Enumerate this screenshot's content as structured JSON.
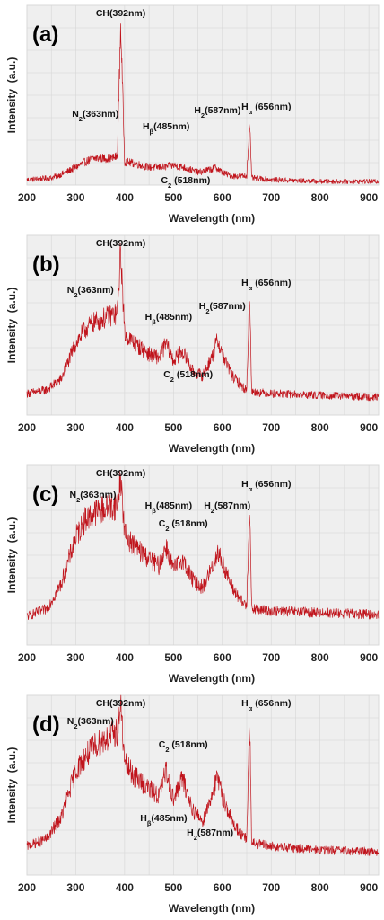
{
  "chart_data": [
    {
      "type": "line",
      "panel_label": "(a)",
      "xlabel": "Wavelength (nm)",
      "ylabel": "Intensity  (a.u.)",
      "xlim": [
        200,
        920
      ],
      "ylim": [
        0,
        1
      ],
      "x_ticks": [
        "200",
        "300",
        "400",
        "500",
        "600",
        "700",
        "800",
        "900"
      ],
      "grid": true,
      "line_color": "#c0141c",
      "series": [
        {
          "x": [
            200,
            250,
            280,
            300,
            320,
            340,
            360,
            375,
            385,
            392,
            400,
            420,
            450,
            480,
            500,
            520,
            550,
            580,
            587,
            600,
            620,
            650,
            656,
            660,
            700,
            800,
            920
          ],
          "y": [
            0.03,
            0.04,
            0.07,
            0.1,
            0.13,
            0.15,
            0.15,
            0.15,
            0.16,
            0.9,
            0.13,
            0.12,
            0.1,
            0.1,
            0.11,
            0.1,
            0.07,
            0.09,
            0.1,
            0.07,
            0.05,
            0.05,
            0.36,
            0.04,
            0.03,
            0.02,
            0.02
          ]
        }
      ],
      "annotations": [
        {
          "text": "CH(392nm)",
          "x": 392,
          "y": 0.96
        },
        {
          "text": "N2(363nm)",
          "x": 340,
          "y": 0.38
        },
        {
          "text": "Hβ(485nm)",
          "x": 485,
          "y": 0.31
        },
        {
          "text": "H2(587nm)",
          "x": 590,
          "y": 0.4
        },
        {
          "text": "Hα (656nm)",
          "x": 690,
          "y": 0.42
        },
        {
          "text": "C2 (518nm)",
          "x": 525,
          "y": 0.0
        }
      ]
    },
    {
      "type": "line",
      "panel_label": "(b)",
      "xlabel": "Wavelength (nm)",
      "ylabel": "Intensity  (a.u.)",
      "xlim": [
        200,
        920
      ],
      "ylim": [
        0,
        1
      ],
      "x_ticks": [
        "200",
        "300",
        "400",
        "500",
        "600",
        "700",
        "800",
        "900"
      ],
      "grid": true,
      "line_color": "#c0141c",
      "series": [
        {
          "x": [
            200,
            240,
            270,
            300,
            320,
            340,
            360,
            375,
            385,
            392,
            400,
            420,
            450,
            470,
            485,
            500,
            518,
            540,
            560,
            580,
            590,
            600,
            620,
            640,
            650,
            656,
            660,
            700,
            800,
            920
          ],
          "y": [
            0.12,
            0.14,
            0.2,
            0.4,
            0.48,
            0.52,
            0.54,
            0.56,
            0.56,
            0.92,
            0.45,
            0.4,
            0.34,
            0.32,
            0.4,
            0.3,
            0.36,
            0.24,
            0.22,
            0.33,
            0.42,
            0.34,
            0.22,
            0.16,
            0.14,
            0.7,
            0.13,
            0.12,
            0.11,
            0.1
          ]
        }
      ],
      "annotations": [
        {
          "text": "CH(392nm)",
          "x": 392,
          "y": 0.98
        },
        {
          "text": "N2(363nm)",
          "x": 330,
          "y": 0.68
        },
        {
          "text": "Hβ(485nm)",
          "x": 490,
          "y": 0.53
        },
        {
          "text": "H2(587nm)",
          "x": 600,
          "y": 0.59
        },
        {
          "text": "Hα (656nm)",
          "x": 690,
          "y": 0.72
        },
        {
          "text": "C2 (518nm)",
          "x": 530,
          "y": 0.21
        }
      ]
    },
    {
      "type": "line",
      "panel_label": "(c)",
      "xlabel": "Wavelength (nm)",
      "ylabel": "Intensity  (a.u.)",
      "xlim": [
        200,
        920
      ],
      "ylim": [
        0,
        1
      ],
      "x_ticks": [
        "200",
        "300",
        "400",
        "500",
        "600",
        "700",
        "800",
        "900"
      ],
      "grid": true,
      "line_color": "#c0141c",
      "series": [
        {
          "x": [
            200,
            240,
            270,
            300,
            320,
            340,
            360,
            375,
            385,
            392,
            400,
            420,
            450,
            470,
            485,
            500,
            518,
            540,
            560,
            580,
            590,
            600,
            620,
            640,
            650,
            656,
            660,
            700,
            800,
            920
          ],
          "y": [
            0.16,
            0.2,
            0.34,
            0.6,
            0.7,
            0.74,
            0.76,
            0.77,
            0.78,
            0.94,
            0.62,
            0.55,
            0.48,
            0.44,
            0.55,
            0.42,
            0.48,
            0.36,
            0.32,
            0.44,
            0.52,
            0.46,
            0.32,
            0.24,
            0.22,
            0.8,
            0.2,
            0.19,
            0.18,
            0.17
          ]
        }
      ],
      "annotations": [
        {
          "text": "CH(392nm)",
          "x": 392,
          "y": 0.99
        },
        {
          "text": "N2(363nm)",
          "x": 335,
          "y": 0.82
        },
        {
          "text": "Hβ(485nm)",
          "x": 490,
          "y": 0.76
        },
        {
          "text": "H2(587nm)",
          "x": 610,
          "y": 0.76
        },
        {
          "text": "C2 (518nm)",
          "x": 520,
          "y": 0.66
        },
        {
          "text": "Hα (656nm)",
          "x": 690,
          "y": 0.88
        }
      ]
    },
    {
      "type": "line",
      "panel_label": "(d)",
      "xlabel": "Wavelength (nm)",
      "ylabel": "Intensity  (a.u.)",
      "xlim": [
        200,
        920
      ],
      "ylim": [
        0,
        1
      ],
      "x_ticks": [
        "200",
        "300",
        "400",
        "500",
        "600",
        "700",
        "800",
        "900"
      ],
      "grid": true,
      "line_color": "#c0141c",
      "series": [
        {
          "x": [
            200,
            240,
            270,
            300,
            320,
            340,
            360,
            375,
            385,
            392,
            400,
            420,
            450,
            470,
            485,
            500,
            518,
            540,
            560,
            580,
            590,
            600,
            620,
            640,
            650,
            656,
            660,
            700,
            800,
            920
          ],
          "y": [
            0.16,
            0.2,
            0.32,
            0.58,
            0.66,
            0.72,
            0.76,
            0.78,
            0.8,
            0.96,
            0.62,
            0.55,
            0.48,
            0.44,
            0.58,
            0.42,
            0.54,
            0.36,
            0.3,
            0.46,
            0.54,
            0.44,
            0.3,
            0.22,
            0.2,
            0.86,
            0.18,
            0.16,
            0.14,
            0.13
          ]
        }
      ],
      "annotations": [
        {
          "text": "CH(392nm)",
          "x": 392,
          "y": 1.0
        },
        {
          "text": "N2(363nm)",
          "x": 330,
          "y": 0.84
        },
        {
          "text": "C2 (518nm)",
          "x": 520,
          "y": 0.71
        },
        {
          "text": "Hβ(485nm)",
          "x": 480,
          "y": 0.3
        },
        {
          "text": "H2(587nm)",
          "x": 575,
          "y": 0.22
        },
        {
          "text": "Hα (656nm)",
          "x": 690,
          "y": 0.99
        }
      ]
    }
  ]
}
